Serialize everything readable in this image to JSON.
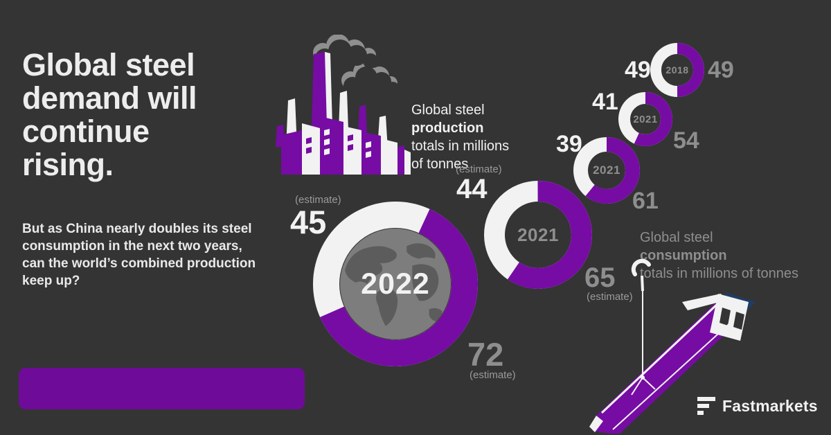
{
  "colors": {
    "background": "#343434",
    "purple": "#760CA4",
    "banner_purple": "#6f0b99",
    "white": "#F2F2F2",
    "gray_text": "#8E8E8E",
    "navy": "#1E3D68",
    "smoke_gray": "#8F8F8F",
    "globe_gray": "#7D7D7D",
    "globe_land": "#5C5C5C"
  },
  "headline": {
    "text": "Global steel demand will continue rising.",
    "lines": [
      "Global steel",
      "demand will",
      "continue",
      "rising."
    ]
  },
  "intro": {
    "text": "But as China nearly doubles its steel consumption in the next two years, can the world’s combined production keep up?",
    "lines": [
      "But as China nearly doubles its steel",
      "consumption in the next two years,",
      "can the world’s combined production",
      "keep up?"
    ]
  },
  "captions": {
    "production": {
      "prefix": "Global steel ",
      "bold": "production",
      "line2": "totals in millions",
      "line3": "of tonnes"
    },
    "consumption": {
      "prefix": "Global steel ",
      "bold": "consumption",
      "line2": "totals in millions of tonnes"
    }
  },
  "brand": {
    "name": "Fastmarkets"
  },
  "chart_data": {
    "type": "donut",
    "title": "Global steel production vs consumption totals in millions of tonnes",
    "legend": {
      "white_segment": "production (millions of tonnes)",
      "purple_segment": "consumption (millions of tonnes)"
    },
    "estimate_label": "(estimate)",
    "colors": {
      "production_segment": "#F2F2F2",
      "consumption_segment": "#760CA4"
    },
    "points": [
      {
        "year": "2018",
        "production": 49,
        "consumption": 49,
        "production_estimate": false,
        "consumption_estimate": false
      },
      {
        "year": "2021",
        "production": 41,
        "consumption": 54,
        "production_estimate": false,
        "consumption_estimate": false
      },
      {
        "year": "2021",
        "production": 39,
        "consumption": 61,
        "production_estimate": false,
        "consumption_estimate": false
      },
      {
        "year": "2021",
        "production": 44,
        "consumption": 65,
        "production_estimate": true,
        "consumption_estimate": true
      },
      {
        "year": "2022",
        "production": 45,
        "consumption": 72,
        "production_estimate": true,
        "consumption_estimate": true
      }
    ]
  }
}
